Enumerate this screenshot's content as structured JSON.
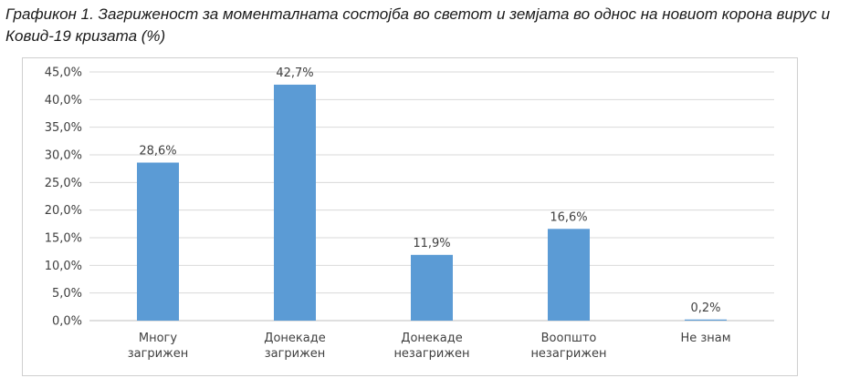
{
  "title": "Графикон 1. Загриженост за моменталната состојба во светот и земјата во однос на новиот корона вирус и Ковид-19 кризата (%)",
  "colors": {
    "bar": "#5B9BD5",
    "grid": "#d9d9d9",
    "axis": "#bfbfbf"
  },
  "chart_data": {
    "type": "bar",
    "title": "Графикон 1. Загриженост за моменталната состојба во светот и земјата во однос на новиот корона вирус и Ковид-19 кризата (%)",
    "categories": [
      [
        "Многу",
        "загрижен"
      ],
      [
        "Донекаде",
        "загрижен"
      ],
      [
        "Донекаде",
        "незагрижен"
      ],
      [
        "Воопшто",
        "незагрижен"
      ],
      [
        "Не знам"
      ]
    ],
    "values": [
      28.6,
      42.7,
      11.9,
      16.6,
      0.2
    ],
    "data_labels": [
      "28,6%",
      "42,7%",
      "11,9%",
      "16,6%",
      "0,2%"
    ],
    "y_ticks": [
      "0,0%",
      "5,0%",
      "10,0%",
      "15,0%",
      "20,0%",
      "25,0%",
      "30,0%",
      "35,0%",
      "40,0%",
      "45,0%"
    ],
    "ylim": [
      0,
      45
    ],
    "grid": true,
    "legend": "none"
  }
}
